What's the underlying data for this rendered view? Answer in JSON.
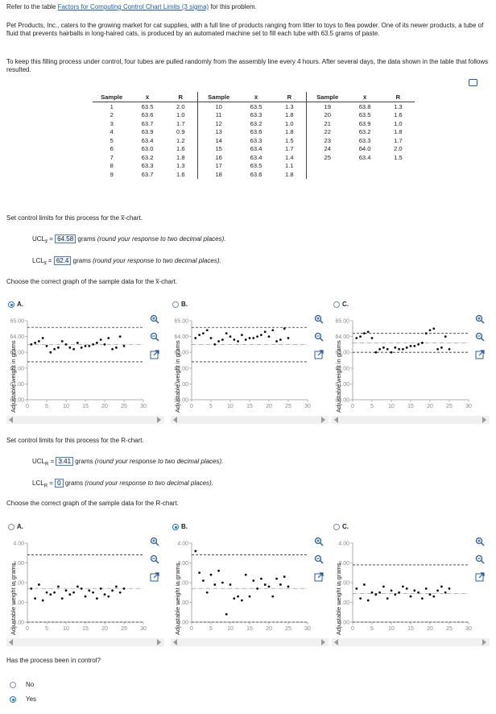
{
  "intro": {
    "refer_prefix": "Refer to the table ",
    "refer_link": "Factors for Computing Control Chart Limits (3 sigma)",
    "refer_suffix": " for this problem.",
    "para1": "Pet Products, Inc., caters to the growing market for cat supplies, with a full line of products ranging from litter to toys to flea powder. One of its newer products, a tube of fluid that prevents hairballs in long-haired cats, is produced by an automated machine set to fill each tube with 63.5 grams of paste.",
    "para2": "To keep this filling process under control, four tubes are pulled randomly from the assembly line every 4 hours. After several days, the data shown in the table that follows resulted."
  },
  "table": {
    "headers": [
      "Sample",
      "x̅",
      "R",
      "Sample",
      "x̅",
      "R",
      "Sample",
      "x̅",
      "R"
    ],
    "col1": [
      [
        "1",
        "63.5",
        "2.0"
      ],
      [
        "2",
        "63.6",
        "1.0"
      ],
      [
        "3",
        "63.7",
        "1.7"
      ],
      [
        "4",
        "63.9",
        "0.9"
      ],
      [
        "5",
        "63.4",
        "1.2"
      ],
      [
        "6",
        "63.0",
        "1.6"
      ],
      [
        "7",
        "63.2",
        "1.8"
      ],
      [
        "8",
        "63.3",
        "1.3"
      ],
      [
        "9",
        "63.7",
        "1.6"
      ]
    ],
    "col2": [
      [
        "10",
        "63.5",
        "1.3"
      ],
      [
        "11",
        "63.3",
        "1.8"
      ],
      [
        "12",
        "63.2",
        "1.0"
      ],
      [
        "13",
        "63.6",
        "1.8"
      ],
      [
        "14",
        "63.3",
        "1.5"
      ],
      [
        "15",
        "63.4",
        "1.7"
      ],
      [
        "16",
        "63.4",
        "1.4"
      ],
      [
        "17",
        "63.5",
        "1.1"
      ],
      [
        "18",
        "63.6",
        "1.8"
      ]
    ],
    "col3": [
      [
        "19",
        "63.8",
        "1.3"
      ],
      [
        "20",
        "63.5",
        "1.6"
      ],
      [
        "21",
        "63.9",
        "1.0"
      ],
      [
        "22",
        "63.2",
        "1.8"
      ],
      [
        "23",
        "63.3",
        "1.7"
      ],
      [
        "24",
        "64.0",
        "2.0"
      ],
      [
        "25",
        "63.4",
        "1.5"
      ]
    ]
  },
  "xbar_section": {
    "prompt": "Set control limits for this process for the x̅-chart.",
    "ucl_label": "UCL",
    "ucl_sub": "x̅",
    "ucl_value": "64.58",
    "ucl_hint_pre": "grams ",
    "ucl_hint": "(round your response to two decimal places).",
    "lcl_label": "LCL",
    "lcl_sub": "x̅",
    "lcl_value": "62.4",
    "lcl_hint_pre": "grams ",
    "lcl_hint": "(round your response to two decimal places).",
    "choose": "Choose the correct graph of the sample data for the x̅-chart.",
    "options": [
      "A.",
      "B.",
      "C."
    ],
    "selected": "A"
  },
  "r_section": {
    "prompt": "Set control limits for this process for the R-chart.",
    "ucl_label": "UCL",
    "ucl_sub": "R",
    "ucl_value": "3.41",
    "ucl_hint_pre": "grams ",
    "ucl_hint": "(round your response to two decimal places).",
    "lcl_label": "LCL",
    "lcl_sub": "R",
    "lcl_value": "0",
    "lcl_hint_pre": "grams ",
    "lcl_hint": "(round your response to two decimal places).",
    "choose": "Choose the correct graph of the sample data for the R-chart.",
    "options": [
      "A.",
      "B.",
      "C."
    ],
    "selected": "B"
  },
  "question": {
    "text": "Has the process been in control?",
    "options": [
      "No",
      "Yes"
    ],
    "selected": "Yes"
  },
  "icons": [
    "zoom-in-icon",
    "zoom-out-icon",
    "popout-icon",
    "copy-icon"
  ],
  "colors": {
    "accent": "#1a73e8",
    "link": "#1a5fb4"
  },
  "chart_data": [
    {
      "id": "xbar-A",
      "type": "scatter",
      "ylabel": "Adjustable weight in grams",
      "ylim": [
        60,
        65
      ],
      "xlim": [
        0,
        30
      ],
      "yticks": [
        "60.00",
        "61.00",
        "62.00",
        "63.00",
        "64.00",
        "65.00"
      ],
      "xticks": [
        "0",
        "5",
        "10",
        "15",
        "20",
        "25",
        "30"
      ],
      "ucl": 64.58,
      "lcl": 62.4,
      "x": [
        1,
        2,
        3,
        4,
        5,
        6,
        7,
        8,
        9,
        10,
        11,
        12,
        13,
        14,
        15,
        16,
        17,
        18,
        19,
        20,
        21,
        22,
        23,
        24,
        25
      ],
      "y": [
        63.5,
        63.6,
        63.7,
        63.9,
        63.4,
        63.0,
        63.2,
        63.3,
        63.7,
        63.5,
        63.3,
        63.2,
        63.6,
        63.3,
        63.4,
        63.4,
        63.5,
        63.6,
        63.8,
        63.5,
        63.9,
        63.2,
        63.3,
        64.0,
        63.4
      ]
    },
    {
      "id": "xbar-B",
      "type": "scatter",
      "ylabel": "Adjustable weight in grams",
      "ylim": [
        60,
        65
      ],
      "xlim": [
        0,
        30
      ],
      "yticks": [
        "60.00",
        "61.00",
        "62.00",
        "63.00",
        "64.00",
        "65.00"
      ],
      "xticks": [
        "0",
        "5",
        "10",
        "15",
        "20",
        "25",
        "30"
      ],
      "ucl": 64.58,
      "lcl": 62.4,
      "x": [
        1,
        2,
        3,
        4,
        5,
        6,
        7,
        8,
        9,
        10,
        11,
        12,
        13,
        14,
        15,
        16,
        17,
        18,
        19,
        20,
        21,
        22,
        23,
        24,
        25
      ],
      "y": [
        63.9,
        64.1,
        64.2,
        64.4,
        63.9,
        63.5,
        63.7,
        63.8,
        64.2,
        64.0,
        63.8,
        63.7,
        64.1,
        63.8,
        63.9,
        63.9,
        64.0,
        64.1,
        64.3,
        64.0,
        64.4,
        63.7,
        63.8,
        64.5,
        63.9
      ]
    },
    {
      "id": "xbar-C",
      "type": "scatter",
      "ylabel": "Adjustable weight in grams",
      "ylim": [
        60,
        65
      ],
      "xlim": [
        0,
        30
      ],
      "yticks": [
        "60.00",
        "61.00",
        "62.00",
        "63.00",
        "64.00",
        "65.00"
      ],
      "xticks": [
        "0",
        "5",
        "10",
        "15",
        "20",
        "25",
        "30"
      ],
      "ucl": 64.2,
      "lcl": 63.0,
      "x": [
        1,
        2,
        3,
        4,
        5,
        6,
        7,
        8,
        9,
        10,
        11,
        12,
        13,
        14,
        15,
        16,
        17,
        18,
        19,
        20,
        21,
        22,
        23,
        24,
        25
      ],
      "y": [
        63.9,
        64.0,
        64.2,
        64.3,
        63.9,
        63.0,
        63.2,
        63.3,
        63.2,
        63.0,
        63.3,
        63.2,
        63.2,
        63.3,
        63.4,
        63.4,
        63.5,
        63.6,
        64.2,
        64.4,
        64.5,
        63.2,
        63.3,
        64.0,
        63.2
      ]
    },
    {
      "id": "r-A",
      "type": "scatter",
      "ylabel": "Adjustable weight in grams",
      "ylim": [
        0,
        4
      ],
      "xlim": [
        0,
        30
      ],
      "yticks": [
        "0.00",
        "1.00",
        "2.00",
        "3.00",
        "4.00"
      ],
      "xticks": [
        "0",
        "5",
        "10",
        "15",
        "20",
        "25",
        "30"
      ],
      "ucl": 3.41,
      "lcl": 0,
      "x": [
        1,
        2,
        3,
        4,
        5,
        6,
        7,
        8,
        9,
        10,
        11,
        12,
        13,
        14,
        15,
        16,
        17,
        18,
        19,
        20,
        21,
        22,
        23,
        24,
        25
      ],
      "y": [
        1.7,
        1.2,
        1.9,
        1.1,
        1.5,
        1.4,
        1.5,
        1.8,
        1.2,
        1.6,
        1.4,
        1.5,
        1.8,
        1.7,
        1.3,
        1.6,
        1.5,
        1.2,
        1.7,
        1.4,
        1.3,
        1.6,
        1.8,
        1.5,
        1.7
      ]
    },
    {
      "id": "r-B",
      "type": "scatter",
      "ylabel": "Adjustable weight in grams",
      "ylim": [
        0,
        4
      ],
      "xlim": [
        0,
        30
      ],
      "yticks": [
        "0.00",
        "1.00",
        "2.00",
        "3.00",
        "4.00"
      ],
      "xticks": [
        "0",
        "5",
        "10",
        "15",
        "20",
        "25",
        "30"
      ],
      "ucl": 3.41,
      "lcl": 0,
      "x": [
        1,
        2,
        3,
        4,
        5,
        6,
        7,
        8,
        9,
        10,
        11,
        12,
        13,
        14,
        15,
        16,
        17,
        18,
        19,
        20,
        21,
        22,
        23,
        24,
        25
      ],
      "y": [
        3.6,
        2.5,
        2.1,
        1.5,
        2.4,
        1.9,
        2.6,
        2.0,
        0.4,
        1.9,
        1.2,
        1.3,
        1.1,
        2.4,
        1.3,
        2.1,
        1.7,
        2.2,
        1.9,
        1.8,
        1.3,
        2.2,
        1.9,
        2.3,
        1.8
      ]
    },
    {
      "id": "r-C",
      "type": "scatter",
      "ylabel": "Adjustable weight in grams",
      "ylim": [
        0,
        4
      ],
      "xlim": [
        0,
        30
      ],
      "yticks": [
        "0.00",
        "1.00",
        "2.00",
        "3.00",
        "4.00"
      ],
      "xticks": [
        "0",
        "5",
        "10",
        "15",
        "20",
        "25",
        "30"
      ],
      "ucl": 2.9,
      "lcl": 0,
      "x": [
        1,
        2,
        3,
        4,
        5,
        6,
        7,
        8,
        9,
        10,
        11,
        12,
        13,
        14,
        15,
        16,
        17,
        18,
        19,
        20,
        21,
        22,
        23,
        24,
        25
      ],
      "y": [
        1.7,
        1.2,
        1.9,
        1.1,
        1.5,
        1.4,
        1.5,
        1.8,
        1.2,
        1.6,
        1.4,
        1.5,
        1.8,
        1.7,
        1.3,
        1.6,
        1.5,
        1.2,
        1.7,
        1.4,
        1.3,
        1.6,
        1.8,
        1.5,
        1.7
      ]
    }
  ]
}
